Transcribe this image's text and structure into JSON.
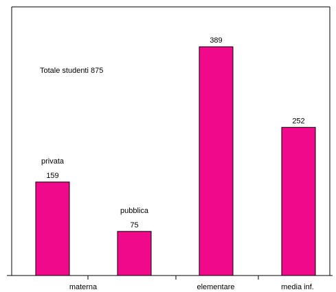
{
  "chart_data": {
    "type": "bar",
    "title": "",
    "xlabel": "",
    "ylabel": "",
    "ylim": [
      0,
      420
    ],
    "grid": false,
    "legend": "none",
    "bar_color": "#F00A8B",
    "annotation": "Totale studenti 875",
    "bars": [
      {
        "group": "materna",
        "label": "privata",
        "value": 159
      },
      {
        "group": "materna",
        "label": "pubblica",
        "value": 75
      },
      {
        "group": "elementare",
        "label": "",
        "value": 389
      },
      {
        "group": "media inf.",
        "label": "",
        "value": 252
      }
    ],
    "categories": [
      "materna",
      "elementare",
      "media inf."
    ]
  }
}
